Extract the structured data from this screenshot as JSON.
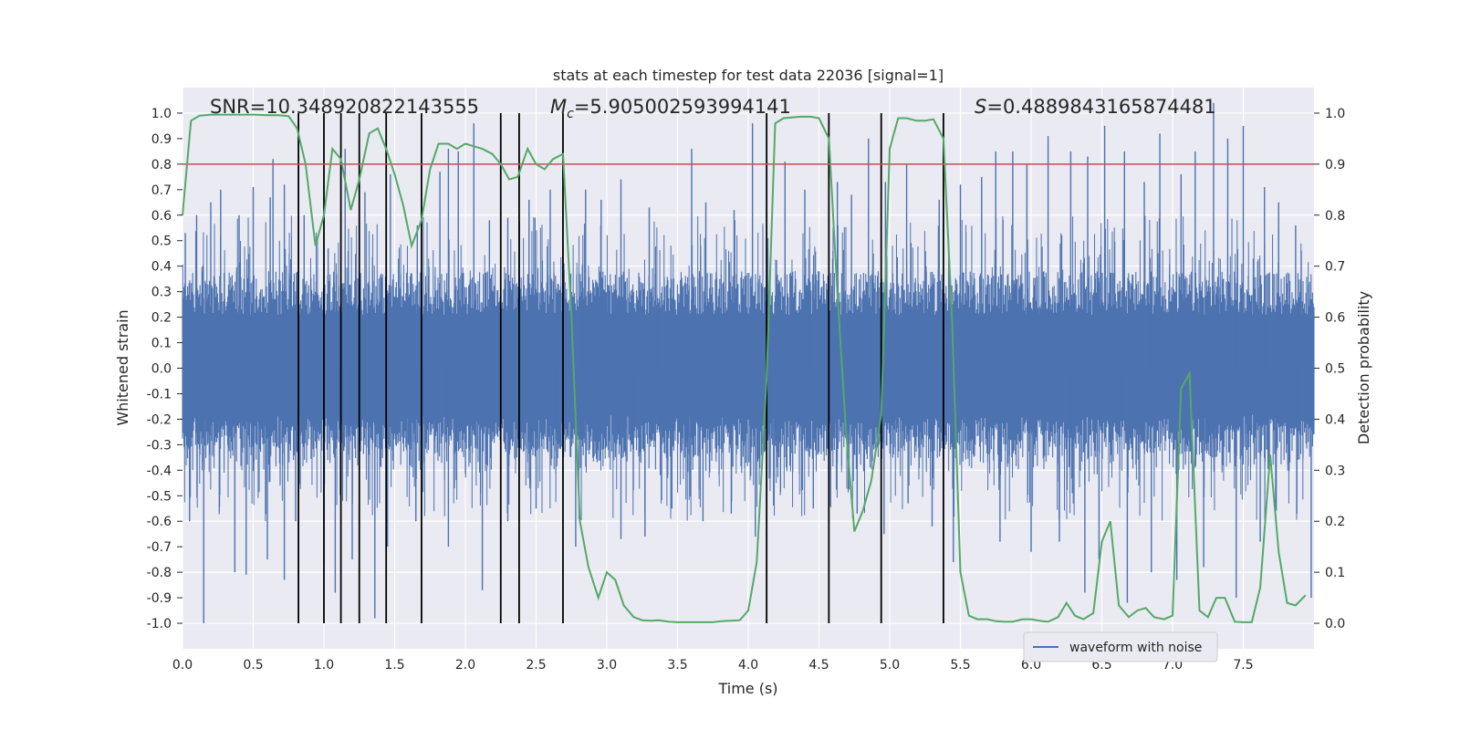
{
  "chart_data": {
    "type": "line",
    "title": "stats at each timestep for test data 22036 [signal=1]",
    "xlabel": "Time (s)",
    "ylabel_left": "Whitened strain",
    "ylabel_right": "Detection probability",
    "xlim": [
      0.0,
      8.0
    ],
    "ylim_left": [
      -1.1,
      1.1
    ],
    "ylim_right": [
      -0.05,
      1.05
    ],
    "x_ticks": [
      "0.0",
      "0.5",
      "1.0",
      "1.5",
      "2.0",
      "2.5",
      "3.0",
      "3.5",
      "4.0",
      "4.5",
      "5.0",
      "5.5",
      "6.0",
      "6.5",
      "7.0",
      "7.5"
    ],
    "x_tick_values": [
      0.0,
      0.5,
      1.0,
      1.5,
      2.0,
      2.5,
      3.0,
      3.5,
      4.0,
      4.5,
      5.0,
      5.5,
      6.0,
      6.5,
      7.0,
      7.5
    ],
    "y_left_ticks": [
      "1.0",
      "0.9",
      "0.8",
      "0.7",
      "0.6",
      "0.5",
      "0.4",
      "0.3",
      "0.2",
      "0.1",
      "0.0",
      "-0.1",
      "-0.2",
      "-0.3",
      "-0.4",
      "-0.5",
      "-0.6",
      "-0.7",
      "-0.8",
      "-0.9",
      "-1.0"
    ],
    "y_left_tick_values": [
      1.0,
      0.9,
      0.8,
      0.7,
      0.6,
      0.5,
      0.4,
      0.3,
      0.2,
      0.1,
      0.0,
      -0.1,
      -0.2,
      -0.3,
      -0.4,
      -0.5,
      -0.6,
      -0.7,
      -0.8,
      -0.9,
      -1.0
    ],
    "y_right_ticks": [
      "1.0",
      "0.9",
      "0.8",
      "0.7",
      "0.6",
      "0.5",
      "0.4",
      "0.3",
      "0.2",
      "0.1",
      "0.0"
    ],
    "y_right_tick_values": [
      1.0,
      0.9,
      0.8,
      0.7,
      0.6,
      0.5,
      0.4,
      0.3,
      0.2,
      0.1,
      0.0
    ],
    "annotations": {
      "snr": "SNR=10.348920822143555",
      "mc_symbol": "M",
      "mc_subscript": "c",
      "mc_value": "=5.905002593994141",
      "s_symbol": "S",
      "s_value": "=0.4889843165874481"
    },
    "threshold": {
      "value": 0.9,
      "axis": "right",
      "color": "#c44e52"
    },
    "vlines": [
      0.82,
      1.0,
      1.12,
      1.25,
      1.44,
      1.69,
      2.25,
      2.38,
      2.69,
      4.13,
      4.57,
      4.94,
      5.38
    ],
    "waveform": {
      "name": "waveform with noise",
      "color": "#4c72b0",
      "envelope": 0.38,
      "spikes_up": [
        [
          0.02,
          0.53
        ],
        [
          0.1,
          0.6
        ],
        [
          0.2,
          0.65
        ],
        [
          0.27,
          0.7
        ],
        [
          0.4,
          0.6
        ],
        [
          0.5,
          0.71
        ],
        [
          0.62,
          0.67
        ],
        [
          0.64,
          0.82
        ],
        [
          0.72,
          0.72
        ],
        [
          0.86,
          0.6
        ],
        [
          1.03,
          0.47
        ],
        [
          1.15,
          0.86
        ],
        [
          1.29,
          0.69
        ],
        [
          1.47,
          0.76
        ],
        [
          1.66,
          0.56
        ],
        [
          1.82,
          0.77
        ],
        [
          1.88,
          0.86
        ],
        [
          1.95,
          0.85
        ],
        [
          2.06,
          0.96
        ],
        [
          2.17,
          0.58
        ],
        [
          2.3,
          0.59
        ],
        [
          2.45,
          0.66
        ],
        [
          2.6,
          0.7
        ],
        [
          2.85,
          0.7
        ],
        [
          2.96,
          0.66
        ],
        [
          3.1,
          0.74
        ],
        [
          3.3,
          0.63
        ],
        [
          3.6,
          0.86
        ],
        [
          3.7,
          0.65
        ],
        [
          3.9,
          0.62
        ],
        [
          4.03,
          0.96
        ],
        [
          4.13,
          0.63
        ],
        [
          4.26,
          0.81
        ],
        [
          4.4,
          0.7
        ],
        [
          4.63,
          0.73
        ],
        [
          4.73,
          0.68
        ],
        [
          4.85,
          0.9
        ],
        [
          4.97,
          0.73
        ],
        [
          5.12,
          0.8
        ],
        [
          5.35,
          0.66
        ],
        [
          5.5,
          0.72
        ],
        [
          5.65,
          0.75
        ],
        [
          5.75,
          0.85
        ],
        [
          5.87,
          0.85
        ],
        [
          5.97,
          0.8
        ],
        [
          6.12,
          0.91
        ],
        [
          6.28,
          0.85
        ],
        [
          6.4,
          0.83
        ],
        [
          6.52,
          0.95
        ],
        [
          6.66,
          0.85
        ],
        [
          6.8,
          0.73
        ],
        [
          6.91,
          0.92
        ],
        [
          7.06,
          0.76
        ],
        [
          7.16,
          0.85
        ],
        [
          7.29,
          1.04
        ],
        [
          7.39,
          0.9
        ],
        [
          7.5,
          0.95
        ],
        [
          7.65,
          0.71
        ],
        [
          7.75,
          0.65
        ],
        [
          7.87,
          0.56
        ]
      ],
      "spikes_down": [
        [
          0.05,
          -0.6
        ],
        [
          0.15,
          -1.0
        ],
        [
          0.37,
          -0.8
        ],
        [
          0.45,
          -0.81
        ],
        [
          0.6,
          -0.75
        ],
        [
          0.72,
          -0.83
        ],
        [
          0.8,
          -0.6
        ],
        [
          1.0,
          -0.76
        ],
        [
          1.08,
          -0.88
        ],
        [
          1.2,
          -0.75
        ],
        [
          1.36,
          -0.98
        ],
        [
          1.45,
          -0.7
        ],
        [
          1.65,
          -0.6
        ],
        [
          1.88,
          -0.7
        ],
        [
          2.12,
          -0.87
        ],
        [
          2.3,
          -0.6
        ],
        [
          2.5,
          -0.55
        ],
        [
          2.78,
          -0.7
        ],
        [
          3.1,
          -0.67
        ],
        [
          3.27,
          -0.66
        ],
        [
          3.46,
          -0.55
        ],
        [
          3.68,
          -0.6
        ],
        [
          3.88,
          -0.57
        ],
        [
          4.05,
          -0.66
        ],
        [
          4.46,
          -0.55
        ],
        [
          4.77,
          -0.57
        ],
        [
          4.96,
          -0.65
        ],
        [
          5.13,
          -0.53
        ],
        [
          5.3,
          -0.62
        ],
        [
          5.45,
          -0.76
        ],
        [
          5.78,
          -0.68
        ],
        [
          6.0,
          -0.72
        ],
        [
          6.2,
          -0.68
        ],
        [
          6.38,
          -0.88
        ],
        [
          6.48,
          -0.75
        ],
        [
          6.68,
          -0.92
        ],
        [
          6.85,
          -0.8
        ],
        [
          7.03,
          -0.83
        ],
        [
          7.22,
          -0.78
        ],
        [
          7.45,
          -0.9
        ],
        [
          7.62,
          -0.68
        ],
        [
          7.98,
          -0.9
        ]
      ]
    },
    "probability": {
      "name": "detection probability",
      "color": "#55a868",
      "points": [
        [
          0.0,
          0.8
        ],
        [
          0.06,
          0.985
        ],
        [
          0.12,
          0.995
        ],
        [
          0.2,
          0.997
        ],
        [
          0.3,
          0.997
        ],
        [
          0.4,
          0.997
        ],
        [
          0.5,
          0.997
        ],
        [
          0.6,
          0.996
        ],
        [
          0.68,
          0.996
        ],
        [
          0.75,
          0.994
        ],
        [
          0.81,
          0.97
        ],
        [
          0.87,
          0.9
        ],
        [
          0.94,
          0.74
        ],
        [
          1.0,
          0.8
        ],
        [
          1.06,
          0.93
        ],
        [
          1.12,
          0.91
        ],
        [
          1.19,
          0.81
        ],
        [
          1.25,
          0.87
        ],
        [
          1.32,
          0.96
        ],
        [
          1.38,
          0.97
        ],
        [
          1.44,
          0.93
        ],
        [
          1.5,
          0.88
        ],
        [
          1.56,
          0.82
        ],
        [
          1.62,
          0.74
        ],
        [
          1.69,
          0.79
        ],
        [
          1.75,
          0.89
        ],
        [
          1.81,
          0.94
        ],
        [
          1.88,
          0.94
        ],
        [
          1.94,
          0.93
        ],
        [
          2.0,
          0.94
        ],
        [
          2.06,
          0.935
        ],
        [
          2.12,
          0.93
        ],
        [
          2.19,
          0.92
        ],
        [
          2.25,
          0.9
        ],
        [
          2.31,
          0.87
        ],
        [
          2.37,
          0.875
        ],
        [
          2.44,
          0.93
        ],
        [
          2.5,
          0.9
        ],
        [
          2.56,
          0.89
        ],
        [
          2.62,
          0.91
        ],
        [
          2.69,
          0.92
        ],
        [
          2.75,
          0.6
        ],
        [
          2.81,
          0.2
        ],
        [
          2.87,
          0.11
        ],
        [
          2.94,
          0.05
        ],
        [
          3.0,
          0.1
        ],
        [
          3.06,
          0.085
        ],
        [
          3.12,
          0.035
        ],
        [
          3.19,
          0.012
        ],
        [
          3.25,
          0.006
        ],
        [
          3.31,
          0.005
        ],
        [
          3.37,
          0.006
        ],
        [
          3.44,
          0.003
        ],
        [
          3.5,
          0.002
        ],
        [
          3.62,
          0.002
        ],
        [
          3.75,
          0.002
        ],
        [
          3.81,
          0.004
        ],
        [
          3.94,
          0.006
        ],
        [
          4.0,
          0.025
        ],
        [
          4.06,
          0.12
        ],
        [
          4.13,
          0.48
        ],
        [
          4.19,
          0.98
        ],
        [
          4.25,
          0.99
        ],
        [
          4.37,
          0.993
        ],
        [
          4.44,
          0.993
        ],
        [
          4.5,
          0.99
        ],
        [
          4.57,
          0.95
        ],
        [
          4.63,
          0.65
        ],
        [
          4.69,
          0.38
        ],
        [
          4.75,
          0.18
        ],
        [
          4.81,
          0.22
        ],
        [
          4.87,
          0.28
        ],
        [
          4.94,
          0.41
        ],
        [
          5.0,
          0.93
        ],
        [
          5.06,
          0.99
        ],
        [
          5.12,
          0.99
        ],
        [
          5.19,
          0.985
        ],
        [
          5.25,
          0.985
        ],
        [
          5.31,
          0.988
        ],
        [
          5.38,
          0.95
        ],
        [
          5.44,
          0.6
        ],
        [
          5.5,
          0.1
        ],
        [
          5.56,
          0.015
        ],
        [
          5.62,
          0.008
        ],
        [
          5.69,
          0.008
        ],
        [
          5.75,
          0.004
        ],
        [
          5.81,
          0.003
        ],
        [
          5.87,
          0.003
        ],
        [
          5.94,
          0.008
        ],
        [
          6.0,
          0.008
        ],
        [
          6.06,
          0.005
        ],
        [
          6.12,
          0.003
        ],
        [
          6.19,
          0.012
        ],
        [
          6.25,
          0.04
        ],
        [
          6.31,
          0.015
        ],
        [
          6.37,
          0.008
        ],
        [
          6.44,
          0.02
        ],
        [
          6.5,
          0.16
        ],
        [
          6.56,
          0.2
        ],
        [
          6.62,
          0.035
        ],
        [
          6.69,
          0.012
        ],
        [
          6.75,
          0.025
        ],
        [
          6.81,
          0.03
        ],
        [
          6.87,
          0.012
        ],
        [
          6.94,
          0.008
        ],
        [
          7.0,
          0.015
        ],
        [
          7.06,
          0.46
        ],
        [
          7.12,
          0.49
        ],
        [
          7.19,
          0.025
        ],
        [
          7.25,
          0.012
        ],
        [
          7.31,
          0.05
        ],
        [
          7.37,
          0.05
        ],
        [
          7.44,
          0.003
        ],
        [
          7.5,
          0.002
        ],
        [
          7.56,
          0.002
        ],
        [
          7.62,
          0.07
        ],
        [
          7.69,
          0.33
        ],
        [
          7.75,
          0.14
        ],
        [
          7.81,
          0.04
        ],
        [
          7.87,
          0.035
        ],
        [
          7.94,
          0.055
        ]
      ]
    },
    "legend": {
      "label": "waveform with noise",
      "loc": "lower-right"
    }
  }
}
